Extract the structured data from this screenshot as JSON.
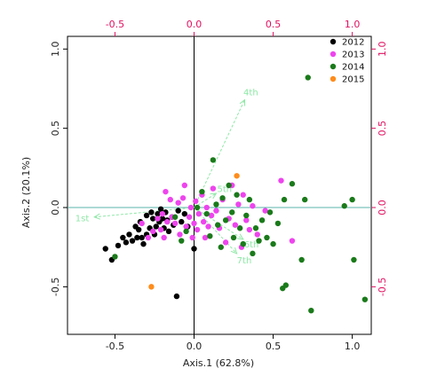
{
  "chart_data": {
    "type": "scatter",
    "subtype": "PCoA biplot",
    "xlabel": "Axis.1 (62.8%)",
    "ylabel": "Axis.2 (20.1%)",
    "xlim": [
      -0.8,
      1.12
    ],
    "ylim": [
      -0.8,
      1.08
    ],
    "x_ticks": [
      -0.5,
      0.0,
      0.5,
      1.0
    ],
    "y_ticks": [
      -0.5,
      0.0,
      0.5,
      1.0
    ],
    "x_tick_labels": [
      "-0.5",
      "0.0",
      "0.5",
      "1.0"
    ],
    "y_tick_labels": [
      "-0.5",
      "0.0",
      "0.5",
      "1.0"
    ],
    "secondary_axes": {
      "color": "#e0115f",
      "x_top_ticks": [
        -0.5,
        0.0,
        0.5,
        1.0
      ],
      "x_top_tick_labels": [
        "-0.5",
        "0.0",
        "0.5",
        "1.0"
      ],
      "y_right_ticks": [
        -0.5,
        0.0,
        0.5,
        1.0
      ],
      "y_right_tick_labels": [
        "-0.5",
        "0.0",
        "0.5",
        "1.0"
      ]
    },
    "reference_lines": {
      "x": 0,
      "y": 0
    },
    "grid": false,
    "legend_position": "top-right",
    "series": [
      {
        "name": "2012",
        "color": "#000000",
        "points": [
          [
            -0.56,
            -0.26
          ],
          [
            -0.52,
            -0.33
          ],
          [
            -0.48,
            -0.24
          ],
          [
            -0.45,
            -0.19
          ],
          [
            -0.43,
            -0.22
          ],
          [
            -0.41,
            -0.17
          ],
          [
            -0.39,
            -0.21
          ],
          [
            -0.37,
            -0.12
          ],
          [
            -0.36,
            -0.19
          ],
          [
            -0.35,
            -0.14
          ],
          [
            -0.34,
            -0.09
          ],
          [
            -0.33,
            -0.19
          ],
          [
            -0.32,
            -0.23
          ],
          [
            -0.3,
            -0.17
          ],
          [
            -0.3,
            -0.05
          ],
          [
            -0.28,
            -0.13
          ],
          [
            -0.27,
            -0.03
          ],
          [
            -0.26,
            -0.07
          ],
          [
            -0.25,
            -0.17
          ],
          [
            -0.24,
            -0.12
          ],
          [
            -0.23,
            -0.04
          ],
          [
            -0.22,
            -0.09
          ],
          [
            -0.21,
            -0.01
          ],
          [
            -0.2,
            -0.07
          ],
          [
            -0.19,
            -0.13
          ],
          [
            -0.18,
            -0.03
          ],
          [
            -0.17,
            -0.08
          ],
          [
            -0.16,
            -0.15
          ],
          [
            -0.14,
            -0.06
          ],
          [
            -0.13,
            -0.11
          ],
          [
            -0.11,
            -0.56
          ],
          [
            -0.1,
            -0.02
          ],
          [
            -0.08,
            -0.09
          ],
          [
            -0.06,
            -0.04
          ],
          [
            -0.04,
            -0.12
          ],
          [
            0.0,
            -0.26
          ]
        ]
      },
      {
        "name": "2013",
        "color": "#ee44ee",
        "points": [
          [
            -0.33,
            -0.1
          ],
          [
            -0.29,
            -0.19
          ],
          [
            -0.26,
            -0.15
          ],
          [
            -0.23,
            -0.07
          ],
          [
            -0.21,
            -0.14
          ],
          [
            -0.2,
            -0.04
          ],
          [
            -0.19,
            -0.19
          ],
          [
            -0.18,
            0.1
          ],
          [
            -0.17,
            -0.09
          ],
          [
            -0.15,
            0.05
          ],
          [
            -0.14,
            -0.06
          ],
          [
            -0.12,
            -0.1
          ],
          [
            -0.1,
            0.03
          ],
          [
            -0.09,
            -0.17
          ],
          [
            -0.07,
            0.06
          ],
          [
            -0.06,
            0.14
          ],
          [
            -0.05,
            -0.12
          ],
          [
            -0.03,
            -0.06
          ],
          [
            -0.02,
            0.0
          ],
          [
            -0.01,
            -0.19
          ],
          [
            0.0,
            -0.1
          ],
          [
            0.01,
            0.04
          ],
          [
            0.02,
            -0.14
          ],
          [
            0.03,
            -0.04
          ],
          [
            0.05,
            0.08
          ],
          [
            0.06,
            -0.09
          ],
          [
            0.07,
            -0.19
          ],
          [
            0.08,
            0.0
          ],
          [
            0.09,
            -0.12
          ],
          [
            0.11,
            -0.05
          ],
          [
            0.12,
            0.12
          ],
          [
            0.14,
            -0.02
          ],
          [
            0.16,
            -0.13
          ],
          [
            0.18,
            0.05
          ],
          [
            0.2,
            -0.22
          ],
          [
            0.22,
            -0.07
          ],
          [
            0.24,
            0.14
          ],
          [
            0.26,
            -0.11
          ],
          [
            0.28,
            0.02
          ],
          [
            0.3,
            -0.25
          ],
          [
            0.31,
            0.08
          ],
          [
            0.33,
            -0.08
          ],
          [
            0.35,
            -0.14
          ],
          [
            0.37,
            0.01
          ],
          [
            0.4,
            -0.17
          ],
          [
            0.45,
            -0.02
          ],
          [
            0.55,
            0.17
          ],
          [
            0.62,
            -0.21
          ]
        ]
      },
      {
        "name": "2014",
        "color": "#1a7a1a",
        "points": [
          [
            -0.5,
            -0.31
          ],
          [
            -0.12,
            -0.06
          ],
          [
            -0.08,
            -0.21
          ],
          [
            -0.05,
            -0.15
          ],
          [
            0.02,
            0.0
          ],
          [
            0.05,
            0.1
          ],
          [
            0.08,
            -0.04
          ],
          [
            0.1,
            -0.18
          ],
          [
            0.12,
            0.3
          ],
          [
            0.14,
            0.02
          ],
          [
            0.15,
            -0.11
          ],
          [
            0.17,
            -0.25
          ],
          [
            0.18,
            0.06
          ],
          [
            0.2,
            -0.08
          ],
          [
            0.22,
            0.14
          ],
          [
            0.24,
            -0.03
          ],
          [
            0.25,
            -0.19
          ],
          [
            0.27,
            0.08
          ],
          [
            0.29,
            -0.13
          ],
          [
            0.31,
            -0.23
          ],
          [
            0.33,
            -0.05
          ],
          [
            0.35,
            0.05
          ],
          [
            0.37,
            -0.29
          ],
          [
            0.39,
            -0.13
          ],
          [
            0.41,
            -0.21
          ],
          [
            0.43,
            -0.08
          ],
          [
            0.46,
            -0.19
          ],
          [
            0.48,
            -0.03
          ],
          [
            0.5,
            -0.23
          ],
          [
            0.53,
            -0.1
          ],
          [
            0.56,
            -0.51
          ],
          [
            0.57,
            0.05
          ],
          [
            0.58,
            -0.49
          ],
          [
            0.62,
            0.15
          ],
          [
            0.68,
            -0.33
          ],
          [
            0.7,
            0.05
          ],
          [
            0.72,
            0.82
          ],
          [
            0.74,
            -0.65
          ],
          [
            0.95,
            0.01
          ],
          [
            1.0,
            0.05
          ],
          [
            1.01,
            -0.33
          ],
          [
            1.08,
            -0.58
          ]
        ]
      },
      {
        "name": "2015",
        "color": "#ff8c1a",
        "points": [
          [
            -0.27,
            -0.5
          ],
          [
            0.27,
            0.2
          ]
        ]
      }
    ],
    "vectors": {
      "color": "#8ee8a6",
      "items": [
        {
          "label": "1st",
          "x": -0.63,
          "y": -0.06
        },
        {
          "label": "4th",
          "x": 0.32,
          "y": 0.68
        },
        {
          "label": "5th",
          "x": 0.14,
          "y": 0.09
        },
        {
          "label": "6th",
          "x": 0.31,
          "y": -0.2
        },
        {
          "label": "7th",
          "x": 0.27,
          "y": -0.29
        }
      ]
    }
  }
}
